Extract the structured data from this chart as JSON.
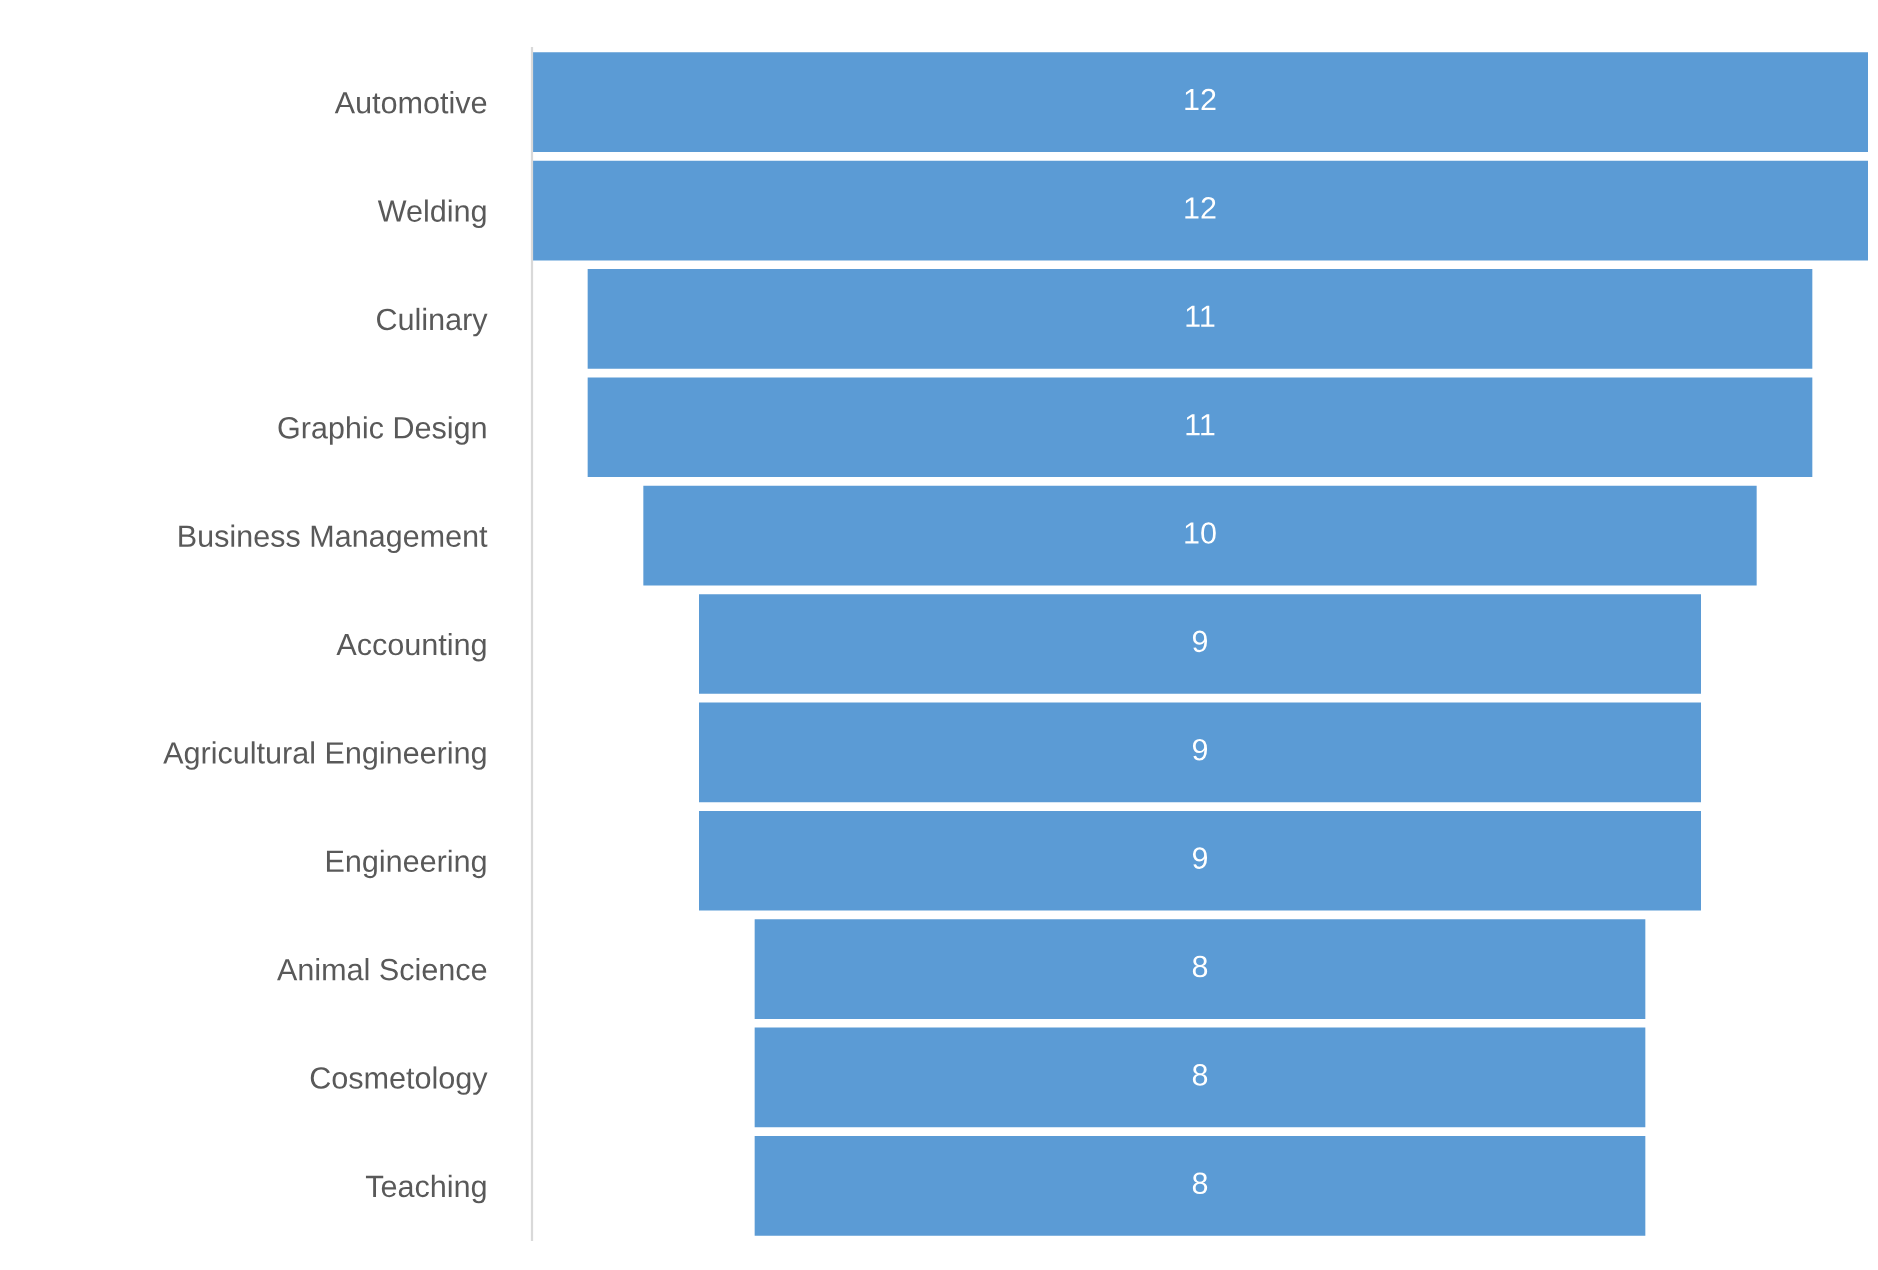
{
  "chart_data": {
    "type": "other",
    "categories": [
      "Automotive",
      "Welding",
      "Culinary",
      "Graphic Design",
      "Business Management",
      "Accounting",
      "Agricultural Engineering",
      "Engineering",
      "Animal Science",
      "Cosmetology",
      "Teaching"
    ],
    "values": [
      12,
      12,
      11,
      11,
      10,
      9,
      9,
      9,
      8,
      8,
      8
    ],
    "color": "#5b9bd5",
    "data_labels": true
  }
}
